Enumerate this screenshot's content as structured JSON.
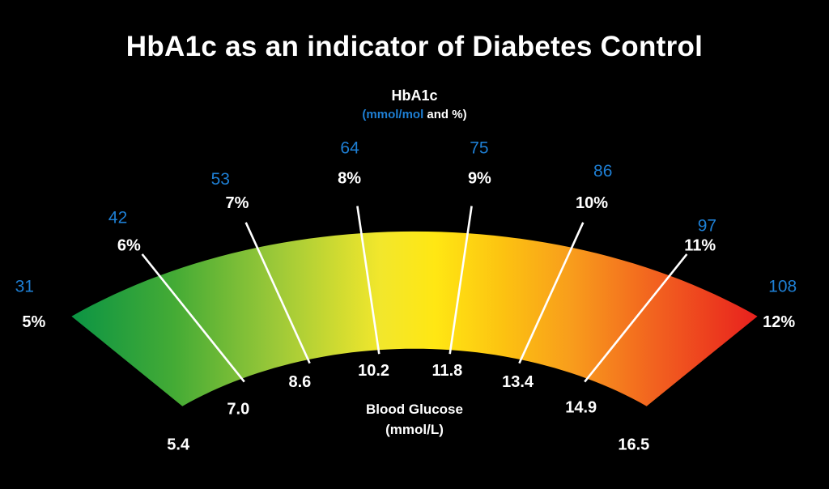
{
  "page": {
    "background": "#000000"
  },
  "chart_data": {
    "type": "gauge",
    "title": "HbA1c as an indicator of Diabetes Control",
    "top_axis": {
      "label": "HbA1c",
      "units_blue": "(mmol/mol",
      "units_white": " and %)"
    },
    "inner_axis": {
      "label": "Blood Glucose",
      "units": "(mmol/L)"
    },
    "boundaries": [
      {
        "mmol_mol": 31,
        "percent": "5%",
        "glucose": "5.4"
      },
      {
        "mmol_mol": 42,
        "percent": "6%",
        "glucose": "7.0"
      },
      {
        "mmol_mol": 53,
        "percent": "7%",
        "glucose": "8.6"
      },
      {
        "mmol_mol": 64,
        "percent": "8%",
        "glucose": "10.2"
      },
      {
        "mmol_mol": 75,
        "percent": "9%",
        "glucose": "11.8"
      },
      {
        "mmol_mol": 86,
        "percent": "10%",
        "glucose": "13.4"
      },
      {
        "mmol_mol": 97,
        "percent": "11%",
        "glucose": "14.9"
      },
      {
        "mmol_mol": 108,
        "percent": "12%",
        "glucose": "16.5"
      }
    ],
    "colors": {
      "accent_blue": "#1e7fd4",
      "label_white": "#ffffff",
      "tick_white": "#ffffff",
      "background": "#000000",
      "gradient_stops": [
        {
          "offset": 0.0,
          "color": "#0b9444"
        },
        {
          "offset": 0.15,
          "color": "#44ab35"
        },
        {
          "offset": 0.3,
          "color": "#9dc938"
        },
        {
          "offset": 0.45,
          "color": "#f2e72c"
        },
        {
          "offset": 0.53,
          "color": "#ffe713"
        },
        {
          "offset": 0.63,
          "color": "#fcc211"
        },
        {
          "offset": 0.73,
          "color": "#f89c1c"
        },
        {
          "offset": 0.85,
          "color": "#f2621f"
        },
        {
          "offset": 1.0,
          "color": "#e8201e"
        }
      ]
    }
  }
}
